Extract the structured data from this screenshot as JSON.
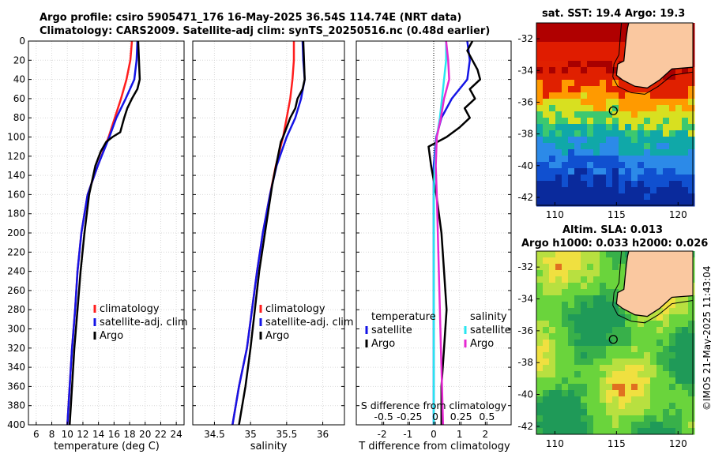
{
  "titles": {
    "line1": "Argo profile: csiro 5905471_176 16-May-2025 36.54S 114.74E (NRT data)",
    "line2": "Climatology: CARS2009. Satellite-adj clim: synTS_20250516.nc (0.48d earlier)"
  },
  "watermark": "©IMOS 21-May-2025 11:43:04",
  "colors": {
    "climatology": "#ff1e1e",
    "satellite": "#1414e6",
    "argo": "#000000",
    "sat_salinity": "#28e6f0",
    "argo_salinity": "#e628d2"
  },
  "depth_axis": {
    "label": "",
    "ticks": [
      0,
      20,
      40,
      60,
      80,
      100,
      120,
      140,
      160,
      180,
      200,
      220,
      240,
      260,
      280,
      300,
      320,
      340,
      360,
      380,
      400
    ],
    "ylim": [
      0,
      400
    ]
  },
  "chart_data": [
    {
      "type": "line",
      "name": "temperature-profile",
      "xlabel": "temperature (deg C)",
      "xlim": [
        5,
        25
      ],
      "xticks": [
        6,
        8,
        10,
        12,
        14,
        16,
        18,
        20,
        22,
        24
      ],
      "legend": [
        "climatology",
        "satellite-adj. clim",
        "Argo"
      ],
      "series": [
        {
          "name": "climatology",
          "color_key": "climatology",
          "depth": [
            0,
            20,
            40,
            60,
            80,
            100,
            130,
            160,
            200,
            240,
            280,
            320,
            360,
            400
          ],
          "values": [
            18.3,
            18.1,
            17.6,
            16.9,
            16.1,
            15.3,
            13.9,
            12.6,
            11.8,
            11.3,
            11.0,
            10.6,
            10.3,
            10.0
          ]
        },
        {
          "name": "satellite-adj. clim",
          "color_key": "satellite",
          "depth": [
            0,
            20,
            40,
            60,
            80,
            100,
            130,
            160,
            200,
            240,
            280,
            320,
            360,
            400
          ],
          "values": [
            19.0,
            18.9,
            18.6,
            17.5,
            16.3,
            15.4,
            13.9,
            12.6,
            11.8,
            11.3,
            11.0,
            10.6,
            10.3,
            10.0
          ]
        },
        {
          "name": "Argo",
          "color_key": "argo",
          "depth": [
            0,
            20,
            40,
            50,
            60,
            70,
            80,
            95,
            100,
            105,
            115,
            130,
            160,
            200,
            240,
            280,
            320,
            360,
            400
          ],
          "values": [
            19.1,
            19.2,
            19.3,
            19.0,
            18.3,
            17.7,
            17.3,
            16.8,
            15.8,
            15.0,
            14.3,
            13.6,
            12.8,
            12.2,
            11.7,
            11.3,
            10.9,
            10.6,
            10.3
          ]
        }
      ]
    },
    {
      "type": "line",
      "name": "salinity-profile",
      "xlabel": "salinity",
      "xlim": [
        34.2,
        36.3
      ],
      "xticks": [
        34.5,
        35,
        35.5,
        36
      ],
      "xtick_labels": [
        "34.5",
        "35",
        "35.5",
        "36"
      ],
      "legend": [
        "climatology",
        "satellite-adj. clim",
        "Argo"
      ],
      "series": [
        {
          "name": "climatology",
          "color_key": "climatology",
          "depth": [
            0,
            20,
            40,
            60,
            80,
            100,
            130,
            160,
            200,
            240,
            280,
            320,
            360,
            400
          ],
          "values": [
            35.6,
            35.6,
            35.58,
            35.55,
            35.5,
            35.45,
            35.35,
            35.27,
            35.17,
            35.09,
            35.02,
            34.95,
            34.84,
            34.75
          ]
        },
        {
          "name": "satellite-adj. clim",
          "color_key": "satellite",
          "depth": [
            0,
            20,
            40,
            60,
            80,
            100,
            130,
            160,
            200,
            240,
            280,
            320,
            360,
            400
          ],
          "values": [
            35.72,
            35.73,
            35.75,
            35.7,
            35.62,
            35.5,
            35.36,
            35.27,
            35.17,
            35.09,
            35.02,
            34.95,
            34.84,
            34.75
          ]
        },
        {
          "name": "Argo",
          "color_key": "argo",
          "depth": [
            0,
            20,
            40,
            50,
            60,
            70,
            80,
            100,
            105,
            120,
            150,
            200,
            240,
            280,
            320,
            360,
            400
          ],
          "values": [
            35.73,
            35.74,
            35.75,
            35.72,
            35.65,
            35.62,
            35.55,
            35.45,
            35.42,
            35.38,
            35.3,
            35.2,
            35.12,
            35.06,
            35.0,
            34.93,
            34.84
          ]
        }
      ]
    },
    {
      "type": "line",
      "name": "difference-profile",
      "xlabel": "T difference from climatology",
      "xlim": [
        -3,
        3
      ],
      "xticks": [
        -2,
        -1,
        0,
        1,
        2
      ],
      "top_axis": {
        "label": "S difference from climatology",
        "ticks": [
          -0.5,
          -0.25,
          0,
          0.25,
          0.5
        ],
        "tick_labels": [
          "-0.5",
          "-0.25",
          "0",
          "0.25",
          "0.5"
        ]
      },
      "legend_temperature": {
        "heading": "temperature",
        "items": [
          "satellite",
          "Argo"
        ]
      },
      "legend_salinity": {
        "heading": "salinity",
        "items": [
          "satellite",
          "Argo"
        ]
      },
      "series": [
        {
          "name": "T satellite",
          "color_key": "satellite",
          "depth": [
            0,
            20,
            40,
            60,
            80,
            100,
            130,
            160,
            200,
            240,
            280,
            320,
            360,
            400
          ],
          "values": [
            1.3,
            1.4,
            1.3,
            0.7,
            0.3,
            0.1,
            0,
            0,
            0,
            0,
            0,
            0,
            0,
            0
          ]
        },
        {
          "name": "T Argo",
          "color_key": "argo",
          "depth": [
            0,
            10,
            20,
            30,
            40,
            50,
            60,
            70,
            80,
            90,
            100,
            110,
            130,
            160,
            200,
            240,
            280,
            320,
            360,
            400
          ],
          "values": [
            1.5,
            1.3,
            1.5,
            1.7,
            1.8,
            1.4,
            1.6,
            1.2,
            1.4,
            1.0,
            0.5,
            -0.2,
            -0.1,
            0.1,
            0.3,
            0.4,
            0.5,
            0.4,
            0.3,
            0.3
          ]
        },
        {
          "name": "S satellite",
          "color_key": "sat_salinity",
          "depth": [
            0,
            20,
            40,
            60,
            80,
            100,
            130,
            160,
            200,
            240,
            280,
            320,
            360,
            400
          ],
          "values": [
            0.12,
            0.12,
            0.1,
            0.08,
            0.06,
            0.03,
            0.01,
            0,
            0,
            0,
            0,
            0,
            0,
            0
          ]
        },
        {
          "name": "S Argo",
          "color_key": "argo_salinity",
          "depth": [
            0,
            20,
            40,
            60,
            80,
            100,
            130,
            160,
            200,
            240,
            280,
            320,
            360,
            400
          ],
          "values": [
            0.12,
            0.14,
            0.15,
            0.1,
            0.07,
            0.03,
            0.02,
            0.03,
            0.04,
            0.05,
            0.06,
            0.07,
            0.08,
            0.09
          ]
        }
      ]
    },
    {
      "type": "heatmap",
      "name": "sst-map",
      "title": "sat. SST: 19.4 Argo: 19.3",
      "xlim": [
        108.5,
        121.2
      ],
      "ylim": [
        -42.5,
        -31
      ],
      "xticks": [
        110,
        115,
        120
      ],
      "yticks": [
        -32,
        -34,
        -36,
        -38,
        -40,
        -42
      ],
      "argo_position": {
        "lon": 114.74,
        "lat": -36.54
      }
    },
    {
      "type": "heatmap",
      "name": "sla-map",
      "title": "Altim. SLA: 0.013",
      "subtitle": "Argo h1000: 0.033 h2000: 0.026",
      "xlim": [
        108.5,
        121.2
      ],
      "ylim": [
        -42.5,
        -31
      ],
      "xticks": [
        110,
        115,
        120
      ],
      "yticks": [
        -32,
        -34,
        -36,
        -38,
        -40,
        -42
      ],
      "argo_position": {
        "lon": 114.74,
        "lat": -36.54
      }
    }
  ]
}
